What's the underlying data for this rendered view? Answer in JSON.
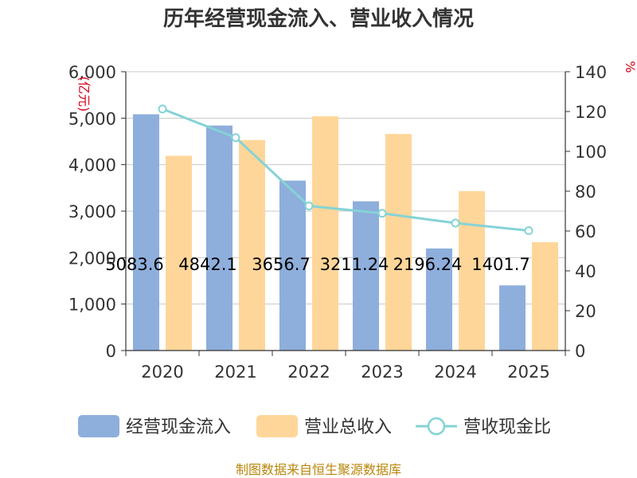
{
  "chart_data": {
    "type": "bar",
    "title": "历年经营现金流入、营业收入情况",
    "categories": [
      "2020",
      "2021",
      "2022",
      "2023",
      "2024",
      "2025"
    ],
    "series": [
      {
        "name": "经营现金流入",
        "type": "bar",
        "axis": "left",
        "color": "#8eaedc",
        "values": [
          5083.6,
          4842.1,
          3656.7,
          3211.2,
          2196.2,
          1401.7
        ],
        "labels": [
          "5083.6",
          "4842.1",
          "3656.7",
          "3211.24",
          "2196.24",
          "1401.7"
        ]
      },
      {
        "name": "营业总收入",
        "type": "bar",
        "axis": "left",
        "color": "#ffd699",
        "values": [
          4190,
          4530,
          5040,
          4660,
          3430,
          2330
        ]
      },
      {
        "name": "营收现金比",
        "type": "line",
        "axis": "right",
        "color": "#85d3d6",
        "values": [
          121.3,
          106.9,
          72.6,
          68.9,
          64.0,
          60.2
        ]
      }
    ],
    "left_axis": {
      "unit": "亿元",
      "ylim": [
        0,
        6000
      ],
      "ticks": [
        "0",
        "1,000",
        "2,000",
        "3,000",
        "4,000",
        "5,000",
        "6,000"
      ]
    },
    "right_axis": {
      "unit": "%",
      "ylim": [
        0,
        140
      ],
      "ticks": [
        "0",
        "20",
        "40",
        "60",
        "80",
        "100",
        "120",
        "140"
      ]
    },
    "legend_position": "bottom",
    "grid": true
  },
  "legend": [
    {
      "label": "经营现金流入",
      "color": "#8eaedc"
    },
    {
      "label": "营业总收入",
      "color": "#ffd699"
    },
    {
      "label": "营收现金比",
      "color": "#85d3d6"
    }
  ],
  "source": "制图数据来自恒生聚源数据库"
}
